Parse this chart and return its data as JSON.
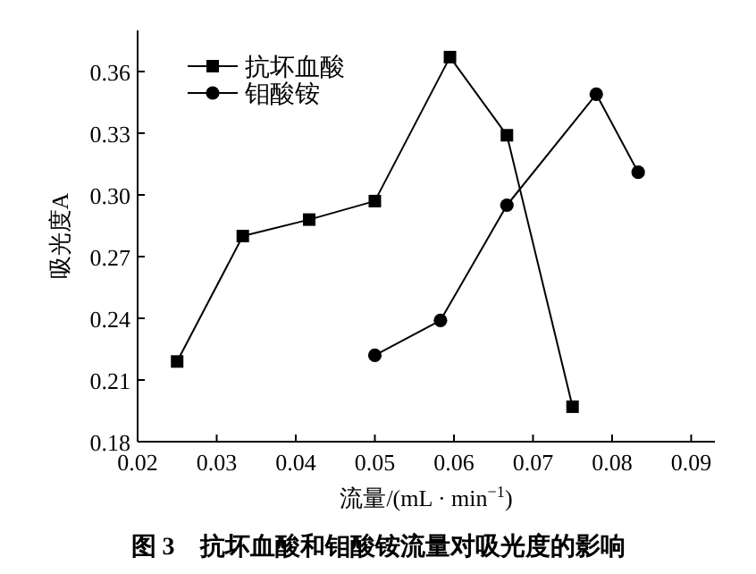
{
  "chart_data": {
    "type": "line",
    "xlabel": "流量/(mL · min$^{−1}$)",
    "ylabel": "吸光度A",
    "annotations": [
      "图 3　抗坏血酸和钼酸铵流量对吸光度的影响"
    ],
    "xlim": [
      0.02,
      0.093
    ],
    "ylim": [
      0.18,
      0.38
    ],
    "xticks": [
      {
        "value": 0.02,
        "label": "0.02"
      },
      {
        "value": 0.03,
        "label": "0.03"
      },
      {
        "value": 0.04,
        "label": "0.04"
      },
      {
        "value": 0.05,
        "label": "0.05"
      },
      {
        "value": 0.06,
        "label": "0.06"
      },
      {
        "value": 0.07,
        "label": "0.07"
      },
      {
        "value": 0.08,
        "label": "0.08"
      },
      {
        "value": 0.09,
        "label": "0.09"
      }
    ],
    "yticks": [
      {
        "value": 0.18,
        "label": "0.18"
      },
      {
        "value": 0.21,
        "label": "0.21"
      },
      {
        "value": 0.24,
        "label": "0.24"
      },
      {
        "value": 0.27,
        "label": "0.27"
      },
      {
        "value": 0.3,
        "label": "0.30"
      },
      {
        "value": 0.33,
        "label": "0.33"
      },
      {
        "value": 0.36,
        "label": "0.36"
      }
    ],
    "legend": "top left",
    "line_style": "solid",
    "series": [
      {
        "name": "抗坏血酸",
        "color": "#000000",
        "marker": "square",
        "x": [
          0.025,
          0.0333,
          0.0417,
          0.05,
          0.0595,
          0.0667,
          0.075
        ],
        "values": [
          0.219,
          0.28,
          0.288,
          0.297,
          0.367,
          0.329,
          0.197
        ]
      },
      {
        "name": "钼酸铵",
        "color": "#000000",
        "marker": "circle",
        "x": [
          0.05,
          0.0583,
          0.0667,
          0.078,
          0.0833
        ],
        "values": [
          0.222,
          0.239,
          0.295,
          0.349,
          0.311
        ]
      }
    ]
  }
}
